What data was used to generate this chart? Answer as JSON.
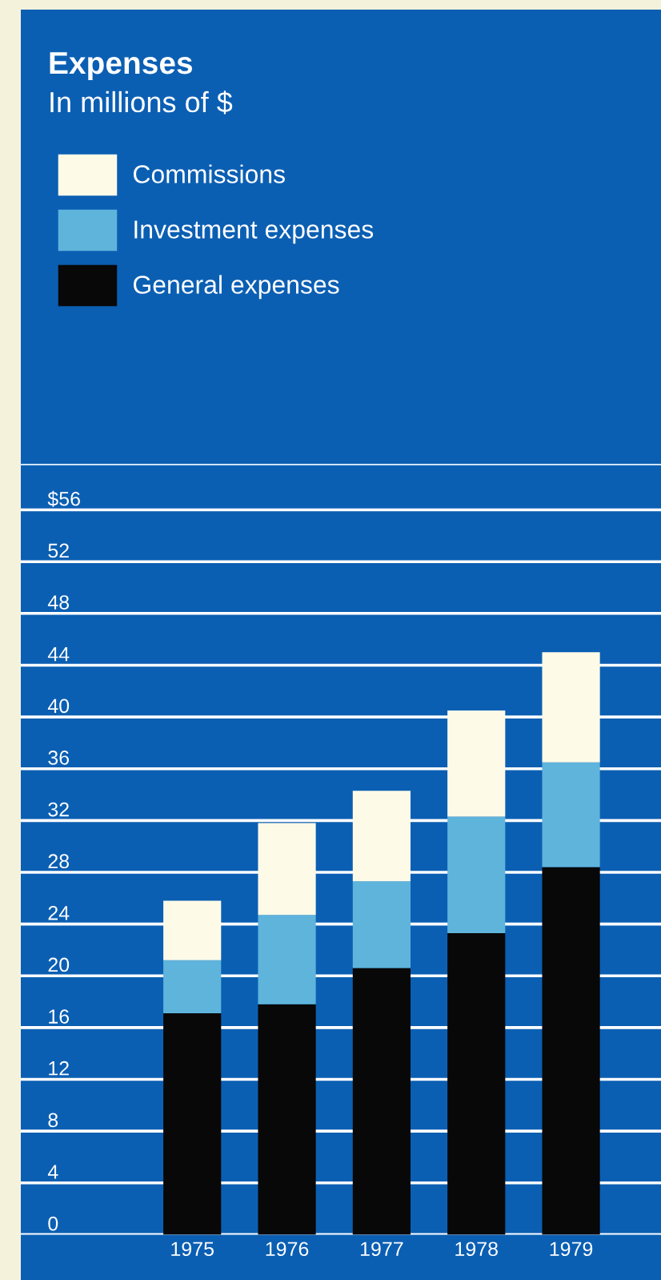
{
  "chart_data": {
    "type": "bar",
    "title": "Expenses",
    "subtitle": "In millions of $",
    "categories": [
      "1975",
      "1976",
      "1977",
      "1978",
      "1979"
    ],
    "stacked": true,
    "series": [
      {
        "name": "General expenses",
        "color": "#080808",
        "values": [
          17.1,
          17.8,
          20.6,
          23.3,
          28.4
        ]
      },
      {
        "name": "Investment expenses",
        "color": "#5fb4dc",
        "values": [
          4.1,
          6.9,
          6.7,
          9.0,
          8.1
        ]
      },
      {
        "name": "Commissions",
        "color": "#fdfbe8",
        "values": [
          4.6,
          7.1,
          7.0,
          8.2,
          8.5
        ]
      }
    ],
    "ylim": [
      0,
      59.5
    ],
    "yticks": [
      0,
      4,
      8,
      12,
      16,
      20,
      24,
      28,
      32,
      36,
      40,
      44,
      48,
      52,
      {
        "value": 56,
        "label": "$56"
      }
    ],
    "grid": "y",
    "legend": "top left"
  }
}
